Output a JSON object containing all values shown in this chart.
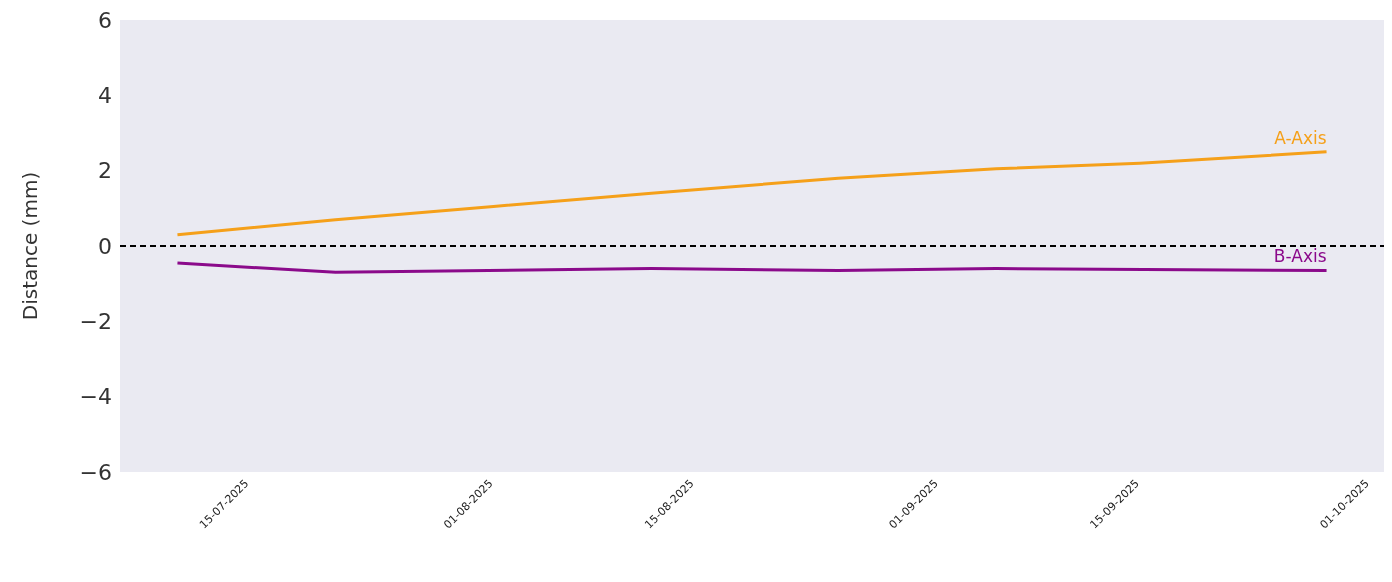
{
  "chart_data": {
    "type": "line",
    "ylabel": "Distance (mm)",
    "series": [
      {
        "name": "A-Axis",
        "color": "#f5a01a",
        "x": [
          "2025-07-10",
          "2025-07-21",
          "2025-08-01",
          "2025-08-12",
          "2025-08-25",
          "2025-09-05",
          "2025-09-15",
          "2025-09-28"
        ],
        "values": [
          0.3,
          0.7,
          1.05,
          1.4,
          1.8,
          2.05,
          2.2,
          2.5
        ]
      },
      {
        "name": "B-Axis",
        "color": "#8b0a8b",
        "x": [
          "2025-07-10",
          "2025-07-21",
          "2025-08-12",
          "2025-08-25",
          "2025-09-05",
          "2025-09-28"
        ],
        "values": [
          -0.45,
          -0.7,
          -0.6,
          -0.65,
          -0.6,
          -0.65
        ]
      }
    ],
    "xlim": [
      "2025-07-06",
      "2025-10-02"
    ],
    "xticks": [
      {
        "value": "2025-07-15",
        "label": "15-07-2025"
      },
      {
        "value": "2025-08-01",
        "label": "01-08-2025"
      },
      {
        "value": "2025-08-15",
        "label": "15-08-2025"
      },
      {
        "value": "2025-09-01",
        "label": "01-09-2025"
      },
      {
        "value": "2025-09-15",
        "label": "15-09-2025"
      },
      {
        "value": "2025-10-01",
        "label": "01-10-2025"
      }
    ],
    "ylim": [
      -6,
      6
    ],
    "yticks": [
      {
        "value": -6,
        "label": "−6"
      },
      {
        "value": -4,
        "label": "−4"
      },
      {
        "value": -2,
        "label": "−2"
      },
      0,
      2,
      4,
      6
    ],
    "ref_lines": [
      {
        "axis": "y",
        "value": 0,
        "color": "#000000",
        "line_style": "dashed"
      }
    ],
    "legend": false,
    "marker": "none",
    "line_style": "solid"
  }
}
